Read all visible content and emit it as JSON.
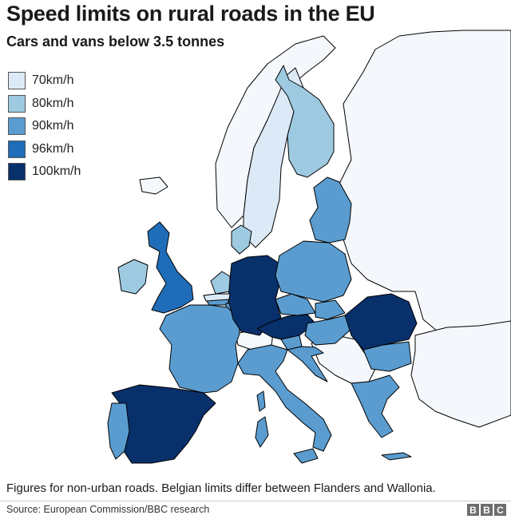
{
  "title": "Speed limits on rural roads in the EU",
  "subtitle": "Cars and vans below 3.5 tonnes",
  "legend": [
    {
      "label": "70km/h",
      "color": "#dce9f6"
    },
    {
      "label": "80km/h",
      "color": "#9ecae1"
    },
    {
      "label": "90km/h",
      "color": "#5a9ccf"
    },
    {
      "label": "96km/h",
      "color": "#1f6db8"
    },
    {
      "label": "100km/h",
      "color": "#08306b"
    }
  ],
  "colors": {
    "non_eu": "#f4f8fc",
    "border": "#000000"
  },
  "countries": {
    "sweden": "70km/h",
    "finland": "80km/h",
    "ireland": "80km/h",
    "denmark": "80km/h",
    "netherlands": "80km/h",
    "uk": "96km/h",
    "france": "90km/h",
    "portugal": "90km/h",
    "italy": "90km/h",
    "poland": "90km/h",
    "baltics": "90km/h",
    "czechia": "90km/h",
    "slovakia": "90km/h",
    "hungary": "90km/h",
    "croatia": "90km/h",
    "slovenia": "90km/h",
    "bulgaria": "90km/h",
    "greece": "90km/h",
    "luxembourg": "90km/h",
    "belgium": "70km/h / 90km/h",
    "germany": "100km/h",
    "austria": "100km/h",
    "spain": "100km/h",
    "romania": "100km/h"
  },
  "note": "Figures for non-urban roads. Belgian limits differ between Flanders and Wallonia.",
  "source": "Source: European Commission/BBC research",
  "logo": [
    "B",
    "B",
    "C"
  ]
}
